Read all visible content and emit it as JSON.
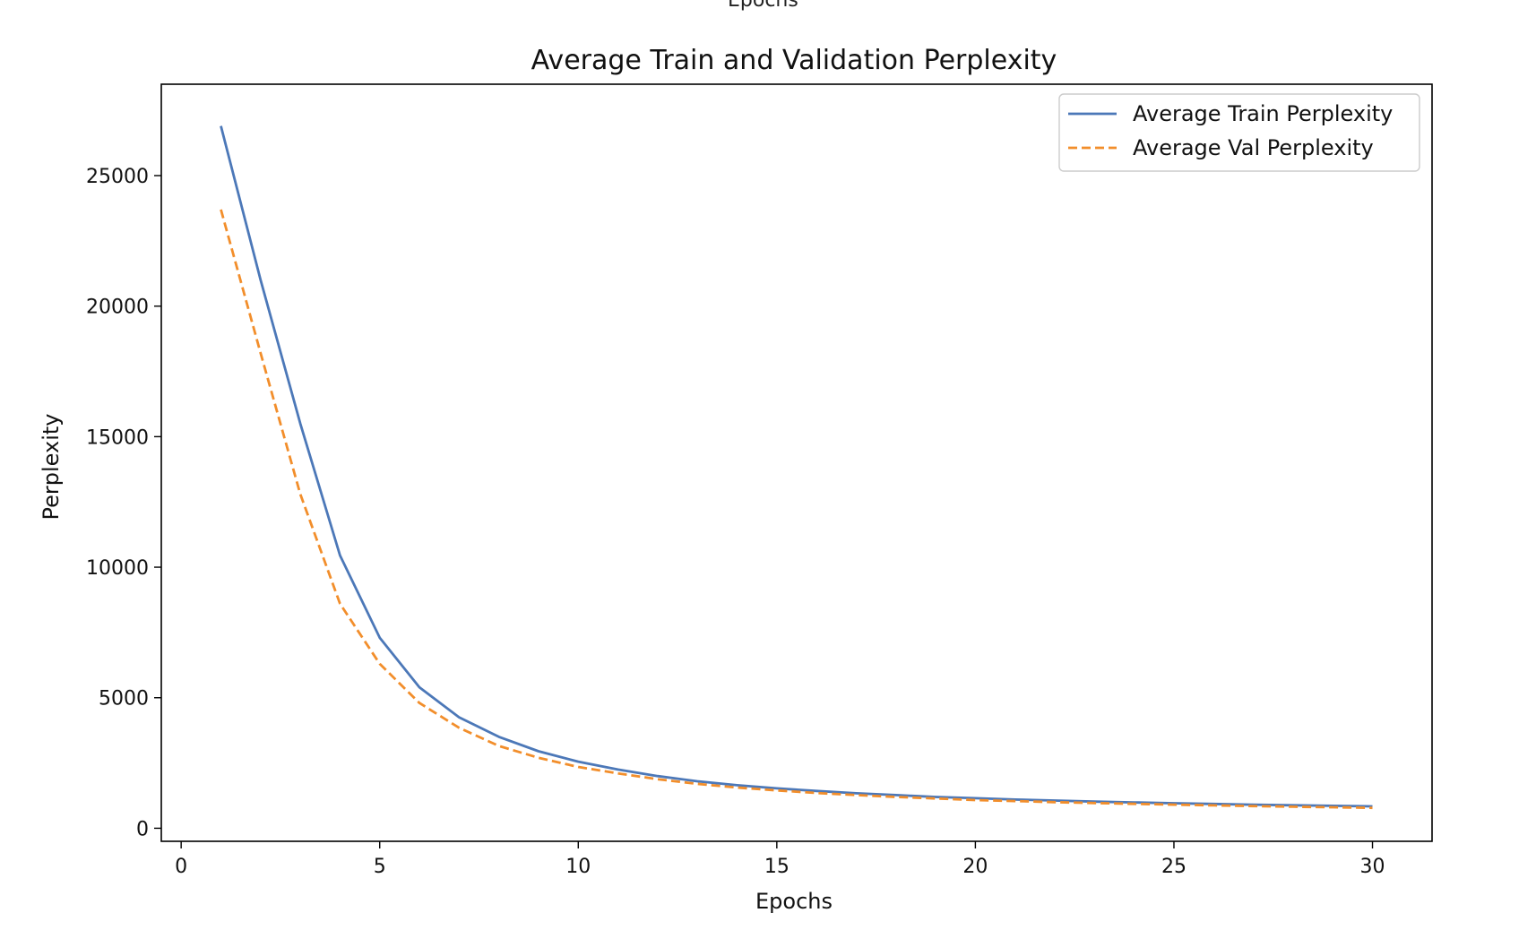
{
  "header_cut_text": "Epochs",
  "chart_data": {
    "type": "line",
    "title": "Average Train and Validation Perplexity",
    "xlabel": "Epochs",
    "ylabel": "Perplexity",
    "xlim": [
      -0.5,
      31.5
    ],
    "ylim": [
      -500,
      28500
    ],
    "xticks": [
      0,
      5,
      10,
      15,
      20,
      25,
      30
    ],
    "yticks": [
      0,
      5000,
      10000,
      15000,
      20000,
      25000
    ],
    "grid": false,
    "legend_position": "top-right",
    "x": [
      1,
      2,
      3,
      4,
      5,
      6,
      7,
      8,
      9,
      10,
      11,
      12,
      13,
      14,
      15,
      16,
      17,
      18,
      19,
      20,
      21,
      22,
      23,
      24,
      25,
      26,
      27,
      28,
      29,
      30
    ],
    "series": [
      {
        "name": "Average Train Perplexity",
        "color": "#4c78b8",
        "style": "solid",
        "values": [
          26900,
          21000,
          15500,
          10450,
          7300,
          5400,
          4250,
          3500,
          2950,
          2550,
          2250,
          2000,
          1800,
          1650,
          1530,
          1430,
          1340,
          1270,
          1200,
          1150,
          1100,
          1060,
          1020,
          990,
          960,
          930,
          905,
          880,
          860,
          840
        ]
      },
      {
        "name": "Average Val Perplexity",
        "color": "#f28e2b",
        "style": "dashed",
        "values": [
          23700,
          18200,
          12800,
          8600,
          6300,
          4800,
          3850,
          3150,
          2700,
          2350,
          2100,
          1880,
          1700,
          1560,
          1450,
          1350,
          1270,
          1200,
          1140,
          1080,
          1040,
          1000,
          965,
          935,
          905,
          875,
          850,
          825,
          805,
          780
        ]
      }
    ]
  }
}
